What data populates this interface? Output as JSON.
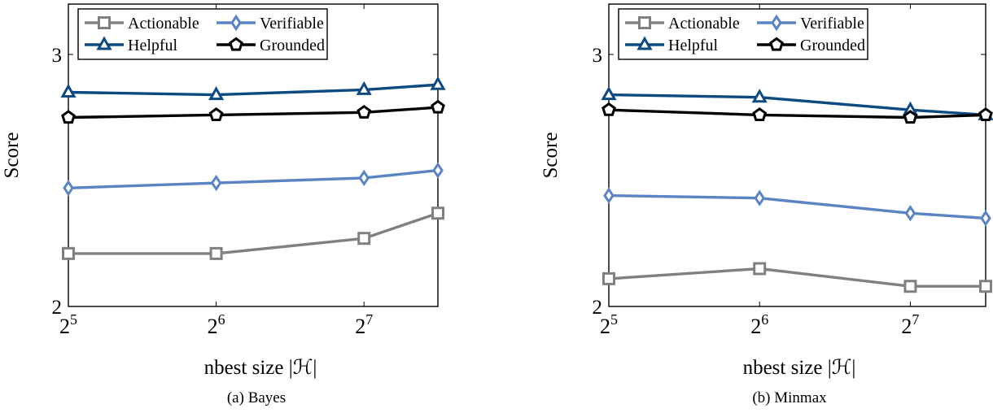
{
  "chart_data": [
    {
      "type": "line",
      "caption": "(a) Bayes",
      "xlabel": "nbest size |ℋ|",
      "ylabel": "Score",
      "x": [
        32,
        64,
        128,
        181
      ],
      "xscale": "log2",
      "xlim": [
        32,
        181
      ],
      "xticks": [
        {
          "value": 32,
          "base": "2",
          "exp": "5"
        },
        {
          "value": 64,
          "base": "2",
          "exp": "6"
        },
        {
          "value": 128,
          "base": "2",
          "exp": "7"
        }
      ],
      "ylim": [
        2,
        3.2
      ],
      "yticks": [
        {
          "value": 2,
          "label": "2"
        },
        {
          "value": 3,
          "label": "3"
        }
      ],
      "grid": false,
      "legend": "top-left",
      "series": [
        {
          "name": "Actionable",
          "color": "#808080",
          "marker": "square",
          "values": [
            2.21,
            2.21,
            2.27,
            2.37
          ]
        },
        {
          "name": "Verifiable",
          "color": "#5b84c4",
          "marker": "diamond",
          "values": [
            2.47,
            2.49,
            2.51,
            2.54
          ]
        },
        {
          "name": "Helpful",
          "color": "#0d4a80",
          "marker": "triangle",
          "values": [
            2.85,
            2.84,
            2.86,
            2.88
          ]
        },
        {
          "name": "Grounded",
          "color": "#000000",
          "marker": "pentagon",
          "values": [
            2.75,
            2.76,
            2.77,
            2.79
          ]
        }
      ]
    },
    {
      "type": "line",
      "caption": "(b) Minmax",
      "xlabel": "nbest size |ℋ|",
      "ylabel": "Score",
      "x": [
        32,
        64,
        128,
        181
      ],
      "xscale": "log2",
      "xlim": [
        32,
        181
      ],
      "xticks": [
        {
          "value": 32,
          "base": "2",
          "exp": "5"
        },
        {
          "value": 64,
          "base": "2",
          "exp": "6"
        },
        {
          "value": 128,
          "base": "2",
          "exp": "7"
        }
      ],
      "ylim": [
        2,
        3.2
      ],
      "yticks": [
        {
          "value": 2,
          "label": "2"
        },
        {
          "value": 3,
          "label": "3"
        }
      ],
      "grid": false,
      "legend": "top-left",
      "series": [
        {
          "name": "Actionable",
          "color": "#808080",
          "marker": "square",
          "values": [
            2.11,
            2.15,
            2.08,
            2.08
          ]
        },
        {
          "name": "Verifiable",
          "color": "#5b84c4",
          "marker": "diamond",
          "values": [
            2.44,
            2.43,
            2.37,
            2.35
          ]
        },
        {
          "name": "Helpful",
          "color": "#0d4a80",
          "marker": "triangle",
          "values": [
            2.84,
            2.83,
            2.78,
            2.76
          ]
        },
        {
          "name": "Grounded",
          "color": "#000000",
          "marker": "pentagon",
          "values": [
            2.78,
            2.76,
            2.75,
            2.76
          ]
        }
      ]
    }
  ]
}
